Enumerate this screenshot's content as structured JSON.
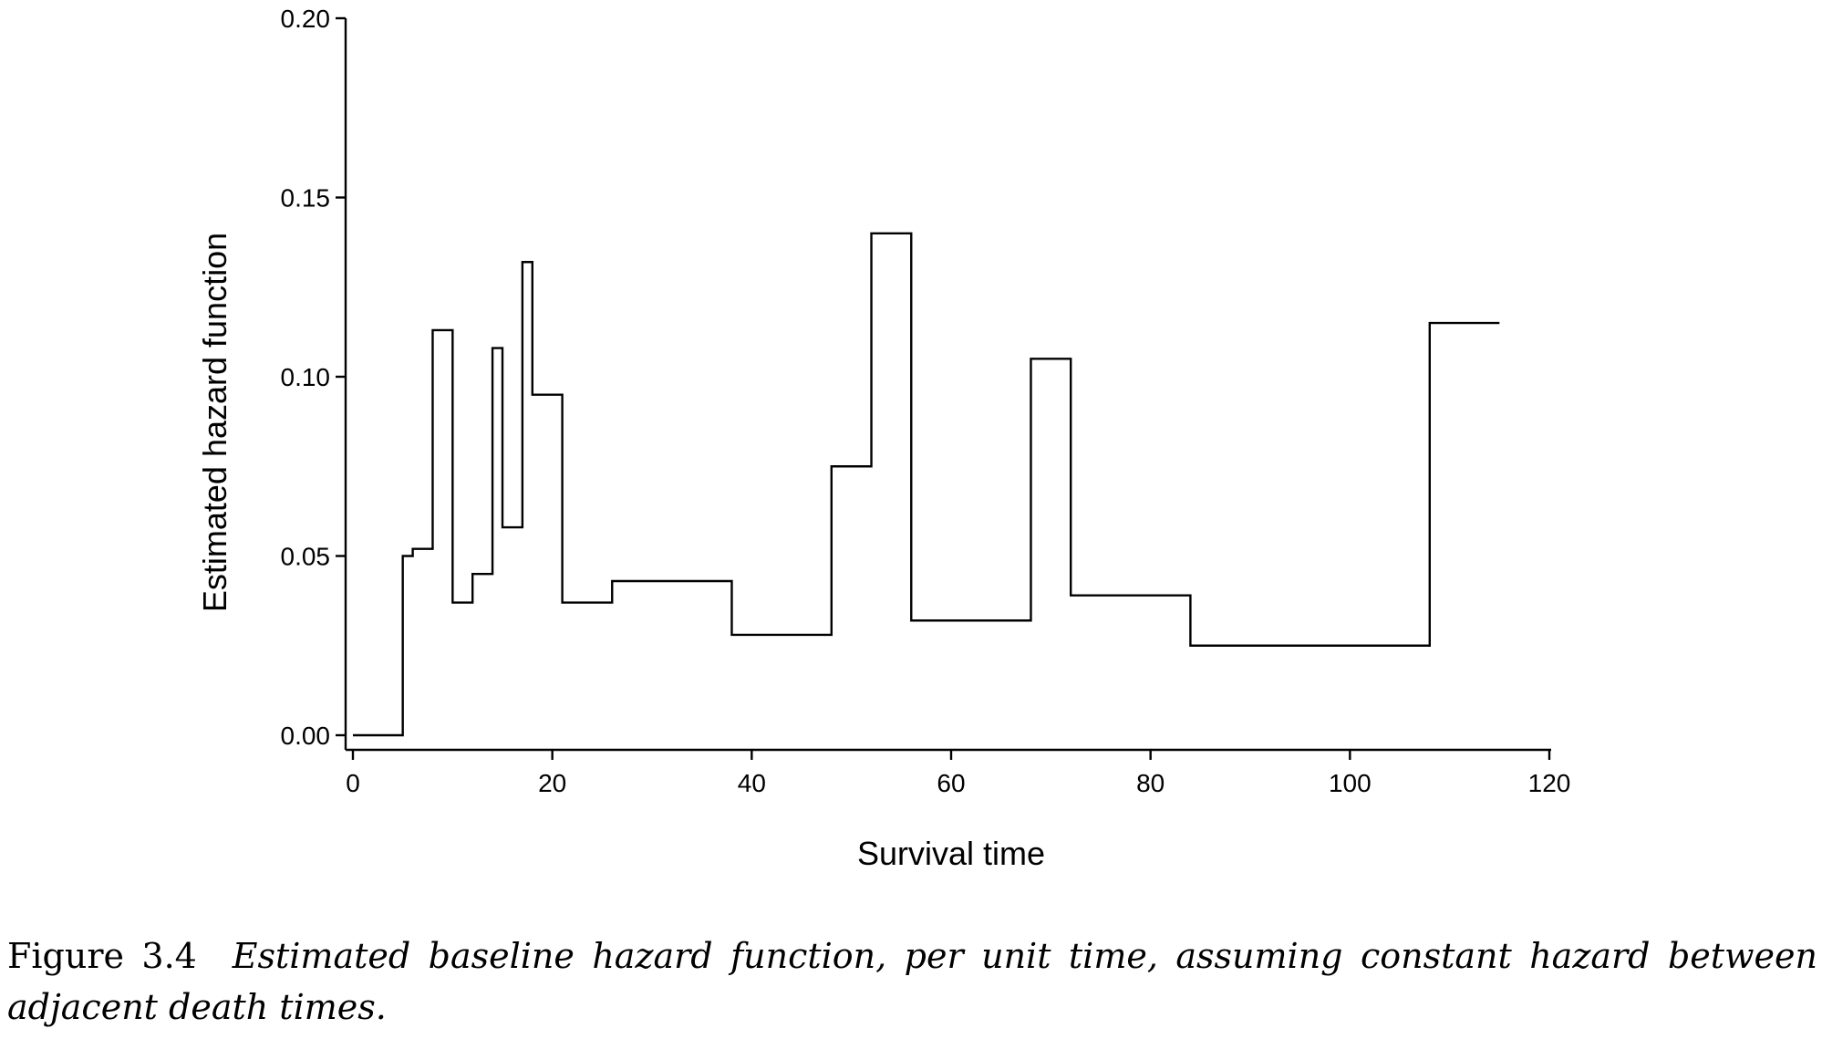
{
  "caption": {
    "label": "Figure 3.4",
    "text": "Estimated baseline hazard function, per unit time, assuming constant hazard between adjacent death times."
  },
  "chart_data": {
    "type": "line",
    "step": true,
    "title": "",
    "xlabel": "Survival time",
    "ylabel": "Estimated hazard function",
    "xlim": [
      0,
      120
    ],
    "ylim": [
      0,
      0.2
    ],
    "xticks": [
      0,
      20,
      40,
      60,
      80,
      100,
      120
    ],
    "yticks": [
      0.0,
      0.05,
      0.1,
      0.15,
      0.2
    ],
    "xtick_labels": [
      "0",
      "20",
      "40",
      "60",
      "80",
      "100",
      "120"
    ],
    "ytick_labels": [
      "0.00",
      "0.05",
      "0.10",
      "0.15",
      "0.20"
    ],
    "grid": false,
    "color": "#000000",
    "series": [
      {
        "x": [
          0,
          5,
          6,
          8,
          10,
          12,
          14,
          15,
          17,
          18,
          21,
          26,
          38,
          48,
          52,
          56,
          68,
          72,
          84,
          108,
          115
        ],
        "y": [
          0,
          0.05,
          0.052,
          0.113,
          0.037,
          0.045,
          0.108,
          0.058,
          0.132,
          0.095,
          0.037,
          0.043,
          0.028,
          0.075,
          0.14,
          0.032,
          0.105,
          0.039,
          0.025,
          0.115,
          0.115
        ]
      }
    ]
  }
}
